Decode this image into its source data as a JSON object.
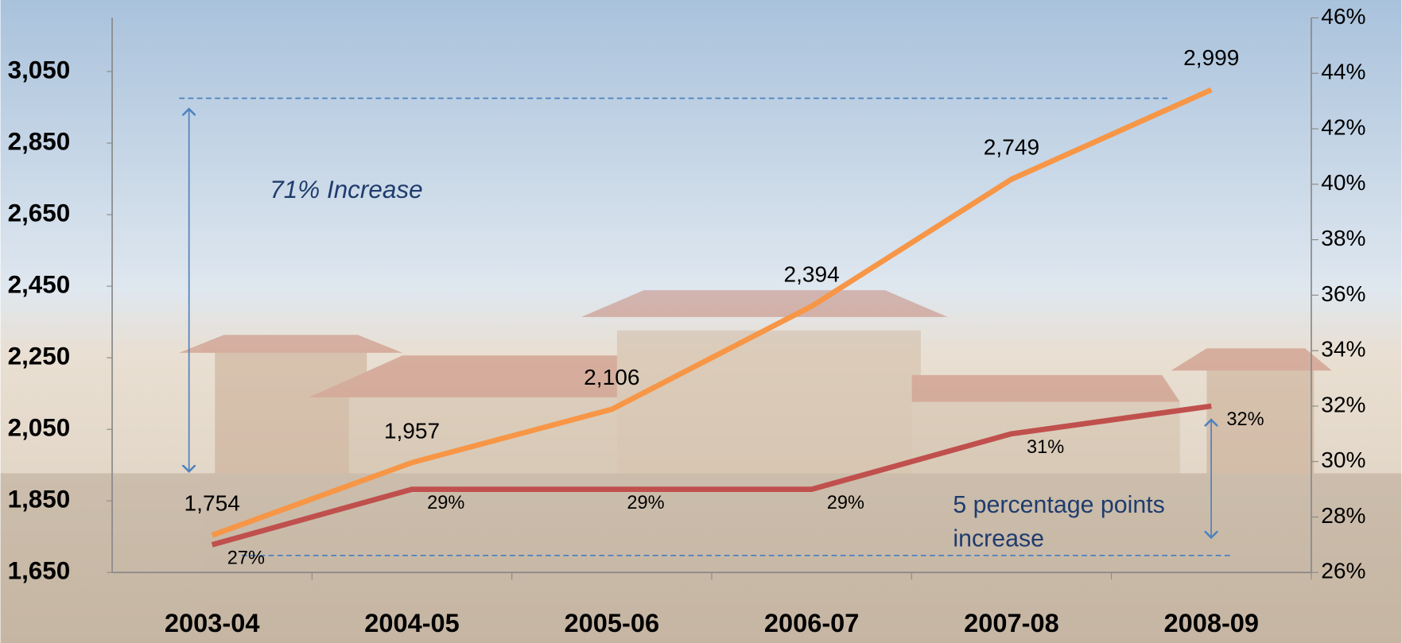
{
  "chart_data": {
    "type": "line",
    "categories": [
      "2003-04",
      "2004-05",
      "2005-06",
      "2006-07",
      "2007-08",
      "2008-09"
    ],
    "series": [
      {
        "values": [
          1754,
          1957,
          2106,
          2394,
          2749,
          2999
        ],
        "value_labels": [
          "1,754",
          "1,957",
          "2,106",
          "2,394",
          "2,749",
          "2,999"
        ],
        "color": "#f79646"
      },
      {
        "values": [
          27,
          29,
          29,
          29,
          31,
          32
        ],
        "value_labels": [
          "27%",
          "29%",
          "29%",
          "29%",
          "31%",
          "32%"
        ],
        "color": "#c0504d",
        "axis": "y2"
      }
    ],
    "ylim": [
      1650,
      3200
    ],
    "yticks": [
      {
        "value": 1650,
        "label": "1,650"
      },
      {
        "value": 1850,
        "label": "1,850"
      },
      {
        "value": 2050,
        "label": "2,050"
      },
      {
        "value": 2250,
        "label": "2,250"
      },
      {
        "value": 2450,
        "label": "2,450"
      },
      {
        "value": 2650,
        "label": "2,650"
      },
      {
        "value": 2850,
        "label": "2,850"
      },
      {
        "value": 3050,
        "label": "3,050"
      }
    ],
    "y2lim": [
      26,
      46
    ],
    "y2ticks": [
      {
        "value": 26,
        "label": "26%"
      },
      {
        "value": 28,
        "label": "28%"
      },
      {
        "value": 30,
        "label": "30%"
      },
      {
        "value": 32,
        "label": "32%"
      },
      {
        "value": 34,
        "label": "34%"
      },
      {
        "value": 36,
        "label": "36%"
      },
      {
        "value": 38,
        "label": "38%"
      },
      {
        "value": 40,
        "label": "40%"
      },
      {
        "value": 42,
        "label": "42%"
      },
      {
        "value": 44,
        "label": "44%"
      },
      {
        "value": 46,
        "label": "46%"
      }
    ],
    "annotations": [
      "71% Increase",
      "5 percentage points increase"
    ],
    "grid": false
  }
}
